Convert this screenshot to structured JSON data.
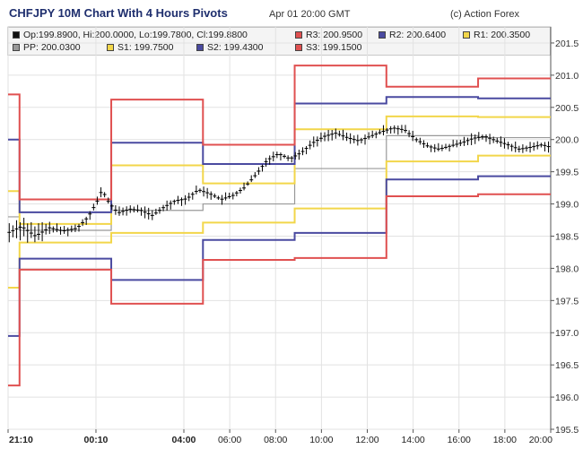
{
  "header": {
    "title": "CHFJPY 10M Chart With 4 Hours Pivots",
    "timestamp": "Apr 01 20:00 GMT",
    "credit": "(c) Action Forex"
  },
  "legend": {
    "ohlc": "Op:199.8900, Hi:200.0000, Lo:199.7800, Cl:199.8800",
    "r3": "R3: 200.9500",
    "r2": "R2: 200.6400",
    "r1": "R1: 200.3500",
    "pp": "PP: 200.0300",
    "s1": "S1: 199.7500",
    "s2": "S2: 199.4300",
    "s3": "S3: 199.1500"
  },
  "colors": {
    "ohlc": "#000000",
    "r3": "#e05050",
    "r2": "#4a4aa0",
    "r1": "#f2d64a",
    "pp": "#999999",
    "s1": "#f2d64a",
    "s2": "#4a4aa0",
    "s3": "#e05050",
    "grid": "#e2e2e2",
    "axis": "#555555",
    "candle": "#000000"
  },
  "chart_data": {
    "type": "line",
    "ylim": [
      195.5,
      201.75
    ],
    "y_ticks": [
      "195.5",
      "196.0",
      "196.5",
      "197.0",
      "197.5",
      "198.0",
      "198.5",
      "199.0",
      "199.5",
      "200.0",
      "200.5",
      "201.0",
      "201.5"
    ],
    "x_ticks": [
      "21:10",
      "00:10",
      "04:00",
      "06:00",
      "08:00",
      "10:00",
      "12:00",
      "14:00",
      "16:00",
      "18:00",
      "20:00"
    ],
    "x_tick_bold": [
      true,
      true,
      true,
      false,
      false,
      false,
      false,
      false,
      false,
      false,
      false
    ],
    "x_tick_pos": [
      0.0,
      3.833,
      7.667,
      9.667,
      11.667,
      13.667,
      15.667,
      17.667,
      19.667,
      21.667,
      23.667
    ],
    "x_range": [
      0,
      23.667
    ],
    "x_unit": "hours from 21:10",
    "pivot_periods": [
      {
        "x": [
          0.0,
          0.5
        ],
        "r3": 200.7,
        "r2": 200.0,
        "r1": 199.2,
        "pp": 198.8,
        "s1": 197.7,
        "s2": 196.95,
        "s3": 196.18
      },
      {
        "x": [
          0.5,
          4.5
        ],
        "r3": 199.07,
        "r2": 198.87,
        "r1": 198.69,
        "pp": 198.59,
        "s1": 198.4,
        "s2": 198.15,
        "s3": 197.98
      },
      {
        "x": [
          4.5,
          8.5
        ],
        "r3": 200.62,
        "r2": 199.95,
        "r1": 199.6,
        "pp": 198.9,
        "s1": 198.55,
        "s2": 197.82,
        "s3": 197.45
      },
      {
        "x": [
          8.5,
          12.5
        ],
        "r3": 199.92,
        "r2": 199.62,
        "r1": 199.32,
        "pp": 199.0,
        "s1": 198.71,
        "s2": 198.44,
        "s3": 198.13
      },
      {
        "x": [
          12.5,
          16.5
        ],
        "r3": 201.15,
        "r2": 200.56,
        "r1": 200.16,
        "pp": 199.55,
        "s1": 198.93,
        "s2": 198.55,
        "s3": 198.16
      },
      {
        "x": [
          16.5,
          20.5
        ],
        "r3": 200.82,
        "r2": 200.66,
        "r1": 200.36,
        "pp": 200.06,
        "s1": 199.66,
        "s2": 199.38,
        "s3": 199.12
      },
      {
        "x": [
          20.5,
          23.667
        ],
        "r3": 200.95,
        "r2": 200.64,
        "r1": 200.35,
        "pp": 200.03,
        "s1": 199.75,
        "s2": 199.43,
        "s3": 199.15
      }
    ],
    "price_points": [
      [
        0.0,
        198.55
      ],
      [
        0.6,
        198.65
      ],
      [
        1.2,
        198.5
      ],
      [
        1.8,
        198.63
      ],
      [
        2.4,
        198.58
      ],
      [
        3.0,
        198.62
      ],
      [
        3.5,
        198.8
      ],
      [
        3.9,
        199.05
      ],
      [
        4.1,
        199.22
      ],
      [
        4.4,
        199.02
      ],
      [
        4.8,
        198.86
      ],
      [
        5.3,
        198.92
      ],
      [
        5.8,
        198.9
      ],
      [
        6.3,
        198.82
      ],
      [
        6.8,
        198.95
      ],
      [
        7.3,
        199.05
      ],
      [
        7.8,
        199.08
      ],
      [
        8.3,
        199.22
      ],
      [
        8.8,
        199.16
      ],
      [
        9.3,
        199.07
      ],
      [
        9.8,
        199.13
      ],
      [
        10.3,
        199.25
      ],
      [
        10.8,
        199.45
      ],
      [
        11.3,
        199.68
      ],
      [
        11.8,
        199.78
      ],
      [
        12.3,
        199.7
      ],
      [
        12.8,
        199.8
      ],
      [
        13.3,
        199.95
      ],
      [
        13.8,
        200.05
      ],
      [
        14.3,
        200.1
      ],
      [
        14.8,
        200.03
      ],
      [
        15.3,
        199.98
      ],
      [
        15.8,
        200.05
      ],
      [
        16.3,
        200.12
      ],
      [
        16.8,
        200.18
      ],
      [
        17.3,
        200.15
      ],
      [
        17.8,
        200.0
      ],
      [
        18.3,
        199.9
      ],
      [
        18.8,
        199.85
      ],
      [
        19.3,
        199.9
      ],
      [
        19.8,
        199.95
      ],
      [
        20.3,
        200.02
      ],
      [
        20.8,
        200.05
      ],
      [
        21.3,
        199.98
      ],
      [
        21.8,
        199.92
      ],
      [
        22.3,
        199.85
      ],
      [
        22.8,
        199.88
      ],
      [
        23.3,
        199.92
      ],
      [
        23.667,
        199.88
      ]
    ]
  }
}
